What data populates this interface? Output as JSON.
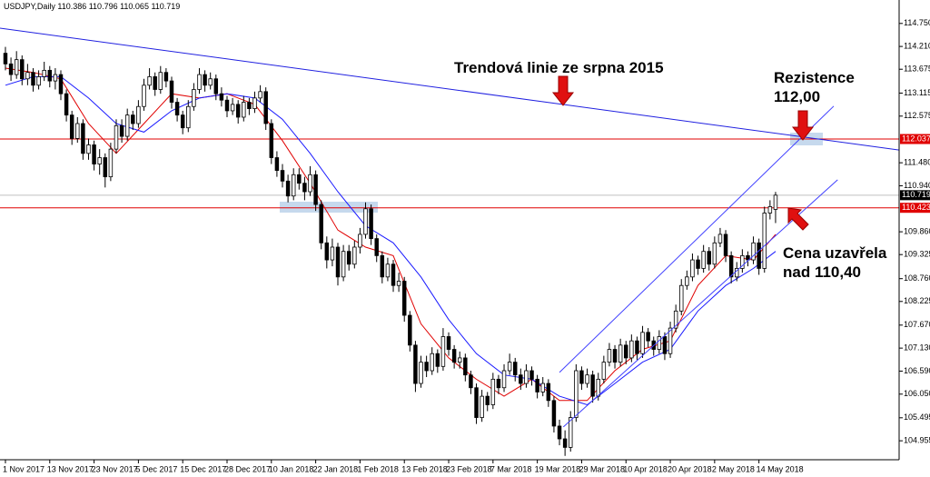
{
  "chart_data": {
    "type": "candlestick",
    "header": "USDJPY,Daily  110.386 110.796 110.065 110.719",
    "up_color": "#ffffff",
    "down_color": "#000000",
    "open": [
      114.05,
      113.8,
      113.55,
      113.9,
      113.45,
      113.6,
      113.3,
      113.5,
      113.65,
      113.4,
      113.55,
      113.1,
      112.6,
      112.05,
      112.4,
      111.7,
      111.9,
      111.45,
      111.6,
      111.15,
      111.8,
      112.35,
      112.1,
      112.6,
      112.4,
      112.8,
      113.3,
      113.5,
      113.2,
      113.6,
      113.4,
      112.9,
      112.6,
      112.3,
      112.8,
      113.2,
      113.55,
      113.3,
      113.45,
      113.1,
      112.95,
      112.7,
      112.85,
      112.55,
      112.9,
      112.75,
      113.0,
      113.15,
      112.4,
      111.6,
      111.3,
      111.05,
      110.7,
      111.2,
      111.0,
      110.8,
      111.2,
      110.5,
      109.6,
      109.2,
      109.5,
      108.8,
      109.4,
      109.1,
      109.5,
      109.8,
      110.4,
      109.7,
      109.3,
      108.8,
      109.1,
      108.6,
      108.7,
      107.9,
      107.2,
      106.3,
      106.8,
      106.6,
      107.0,
      106.7,
      107.4,
      107.1,
      106.8,
      106.9,
      106.5,
      106.2,
      105.5,
      106.0,
      105.8,
      106.4,
      106.2,
      106.6,
      106.8,
      106.5,
      106.3,
      106.6,
      106.4,
      106.1,
      106.3,
      105.9,
      105.3,
      105.0,
      104.8,
      105.5,
      106.6,
      106.3,
      106.5,
      106.0,
      106.4,
      106.8,
      107.1,
      106.8,
      107.2,
      106.9,
      107.3,
      107.0,
      107.5,
      107.3,
      107.1,
      107.4,
      107.0,
      107.6,
      108.0,
      108.6,
      108.8,
      109.2,
      109.0,
      109.4,
      109.1,
      109.6,
      109.8,
      109.3,
      108.8,
      109.0,
      109.3,
      109.2,
      109.6,
      109.0,
      110.3,
      110.386
    ],
    "high": [
      114.2,
      113.95,
      114.1,
      114.0,
      113.8,
      113.7,
      113.65,
      113.85,
      113.75,
      113.7,
      113.65,
      113.2,
      112.7,
      112.55,
      112.5,
      112.05,
      112.0,
      111.8,
      111.7,
      111.95,
      112.5,
      112.5,
      112.75,
      112.7,
      112.95,
      113.45,
      113.7,
      113.6,
      113.75,
      113.7,
      113.5,
      113.0,
      112.7,
      112.95,
      113.35,
      113.7,
      113.65,
      113.6,
      113.55,
      113.25,
      113.05,
      113.0,
      112.95,
      113.05,
      113.0,
      113.15,
      113.3,
      113.25,
      112.5,
      111.75,
      111.45,
      111.2,
      111.35,
      111.35,
      111.15,
      111.4,
      111.3,
      110.6,
      109.75,
      109.7,
      109.6,
      109.55,
      109.55,
      109.65,
      109.95,
      110.55,
      110.5,
      109.8,
      109.4,
      109.25,
      109.2,
      108.9,
      108.8,
      108.0,
      107.3,
      106.95,
      106.95,
      107.15,
      107.1,
      107.6,
      107.5,
      107.2,
      107.05,
      107.0,
      106.6,
      106.3,
      106.15,
      106.1,
      106.55,
      106.5,
      106.75,
      107.0,
      106.9,
      106.65,
      106.75,
      106.7,
      106.5,
      106.45,
      106.4,
      106.0,
      105.45,
      105.2,
      105.65,
      106.75,
      106.7,
      106.65,
      106.6,
      106.55,
      106.95,
      107.25,
      107.2,
      107.35,
      107.3,
      107.45,
      107.4,
      107.65,
      107.6,
      107.4,
      107.55,
      107.5,
      107.75,
      108.15,
      108.75,
      108.95,
      109.35,
      109.3,
      109.55,
      109.5,
      109.75,
      109.95,
      109.9,
      109.4,
      109.15,
      109.45,
      109.4,
      109.75,
      109.7,
      110.45,
      110.6,
      110.796
    ],
    "low": [
      113.65,
      113.4,
      113.45,
      113.3,
      113.3,
      113.15,
      113.2,
      113.4,
      113.25,
      113.2,
      112.95,
      112.45,
      111.9,
      111.95,
      111.55,
      111.55,
      111.3,
      111.2,
      110.9,
      111.05,
      111.7,
      111.95,
      112.0,
      112.25,
      112.3,
      112.7,
      113.2,
      113.05,
      113.1,
      113.25,
      112.75,
      112.45,
      112.15,
      112.2,
      112.7,
      113.1,
      113.15,
      113.2,
      112.95,
      112.8,
      112.55,
      112.6,
      112.4,
      112.45,
      112.6,
      112.65,
      112.9,
      112.25,
      111.45,
      111.15,
      110.9,
      110.55,
      110.6,
      110.85,
      110.6,
      110.7,
      110.35,
      109.45,
      109.0,
      109.05,
      108.6,
      108.7,
      108.95,
      109.0,
      109.35,
      109.7,
      109.55,
      109.15,
      108.65,
      108.7,
      108.45,
      108.45,
      107.75,
      107.05,
      106.1,
      106.2,
      106.45,
      106.5,
      106.55,
      106.6,
      106.95,
      106.65,
      106.65,
      106.35,
      106.05,
      105.35,
      105.4,
      105.65,
      105.7,
      106.05,
      106.1,
      106.5,
      106.35,
      106.15,
      106.2,
      106.25,
      105.95,
      106.0,
      105.75,
      105.15,
      104.85,
      104.6,
      104.7,
      105.4,
      106.15,
      106.2,
      105.85,
      105.9,
      106.3,
      106.7,
      106.65,
      106.7,
      106.75,
      106.8,
      106.85,
      106.9,
      107.15,
      106.95,
      107.0,
      106.85,
      106.9,
      107.5,
      107.9,
      108.5,
      108.7,
      108.85,
      108.9,
      108.95,
      109.0,
      109.5,
      109.15,
      108.65,
      108.7,
      108.9,
      109.05,
      109.1,
      108.85,
      108.9,
      110.15,
      110.065
    ],
    "close": [
      113.8,
      113.55,
      113.9,
      113.45,
      113.6,
      113.3,
      113.5,
      113.65,
      113.4,
      113.55,
      113.1,
      112.6,
      112.05,
      112.4,
      111.7,
      111.9,
      111.45,
      111.6,
      111.15,
      111.8,
      112.35,
      112.1,
      112.6,
      112.4,
      112.8,
      113.3,
      113.5,
      113.2,
      113.6,
      113.4,
      112.9,
      112.6,
      112.3,
      112.8,
      113.2,
      113.55,
      113.3,
      113.45,
      113.1,
      112.95,
      112.7,
      112.85,
      112.55,
      112.9,
      112.75,
      113.0,
      113.15,
      112.4,
      111.6,
      111.3,
      111.05,
      110.7,
      111.2,
      111.0,
      110.8,
      111.2,
      110.5,
      109.6,
      109.2,
      109.5,
      108.8,
      109.4,
      109.1,
      109.5,
      109.8,
      110.4,
      109.7,
      109.3,
      108.8,
      109.1,
      108.6,
      108.7,
      107.9,
      107.2,
      106.3,
      106.8,
      106.6,
      107.0,
      106.7,
      107.4,
      107.1,
      106.8,
      106.9,
      106.5,
      106.2,
      105.5,
      106.0,
      105.8,
      106.4,
      106.2,
      106.6,
      106.8,
      106.5,
      106.3,
      106.6,
      106.4,
      106.1,
      106.3,
      105.9,
      105.3,
      105.0,
      104.8,
      105.5,
      106.6,
      106.3,
      106.5,
      106.0,
      106.4,
      106.8,
      107.1,
      106.8,
      107.2,
      106.9,
      107.3,
      107.0,
      107.5,
      107.3,
      107.1,
      107.4,
      107.0,
      107.6,
      108.0,
      108.6,
      108.8,
      109.2,
      109.0,
      109.4,
      109.1,
      109.6,
      109.8,
      109.3,
      108.8,
      109.0,
      109.3,
      109.2,
      109.6,
      109.0,
      110.3,
      110.45,
      110.719
    ],
    "xlim": [
      -0.98,
      161.3
    ],
    "xticks": [
      {
        "value": 0,
        "label": "1 Nov 2017"
      },
      {
        "value": 8,
        "label": "13 Nov 2017"
      },
      {
        "value": 16,
        "label": "23 Nov 2017"
      },
      {
        "value": 24,
        "label": "5 Dec 2017"
      },
      {
        "value": 32,
        "label": "15 Dec 2017"
      },
      {
        "value": 40,
        "label": "28 Dec 2017"
      },
      {
        "value": 48,
        "label": "10 Jan 2018"
      },
      {
        "value": 56,
        "label": "22 Jan 2018"
      },
      {
        "value": 64,
        "label": "1 Feb 2018"
      },
      {
        "value": 72,
        "label": "13 Feb 2018"
      },
      {
        "value": 80,
        "label": "23 Feb 2018"
      },
      {
        "value": 88,
        "label": "7 Mar 2018"
      },
      {
        "value": 96,
        "label": "19 Mar 2018"
      },
      {
        "value": 104,
        "label": "29 Mar 2018"
      },
      {
        "value": 112,
        "label": "10 Apr 2018"
      },
      {
        "value": 120,
        "label": "20 Apr 2018"
      },
      {
        "value": 128,
        "label": "2 May 2018"
      },
      {
        "value": 136,
        "label": "14 May 2018"
      }
    ],
    "ylim": [
      104.51,
      115.3
    ],
    "yticks": [
      {
        "value": 114.75,
        "label": "114.750"
      },
      {
        "value": 114.21,
        "label": "114.210"
      },
      113.675,
      113.115,
      112.575,
      {
        "value": 111.48,
        "label": "111.480"
      },
      {
        "value": 110.94,
        "label": "110.940"
      },
      {
        "value": 109.86,
        "label": "109.860"
      },
      109.325,
      {
        "value": 108.76,
        "label": "108.760"
      },
      108.225,
      {
        "value": 107.67,
        "label": "107.670"
      },
      {
        "value": 107.13,
        "label": "107.130"
      },
      {
        "value": 106.59,
        "label": "106.590"
      },
      {
        "value": 106.05,
        "label": "106.050"
      },
      105.495,
      104.955
    ],
    "hlines": [
      {
        "value": 112.037,
        "color": "#e00000"
      },
      {
        "value": 110.719,
        "color": "#000000"
      },
      {
        "value": 110.423,
        "color": "#e00000"
      }
    ],
    "ma_lines": [
      {
        "color": "#e00000",
        "x": [
          0,
          5,
          10,
          15,
          20,
          25,
          30,
          35,
          40,
          45,
          50,
          55,
          60,
          65,
          70,
          75,
          80,
          85,
          90,
          95,
          100,
          105,
          110,
          115,
          120,
          125,
          130,
          135,
          139
        ],
        "values": [
          113.7,
          113.6,
          113.45,
          112.4,
          111.7,
          112.4,
          113.1,
          113.0,
          113.1,
          112.85,
          112.0,
          111.0,
          109.9,
          109.5,
          109.3,
          107.7,
          106.9,
          106.4,
          106.0,
          106.4,
          105.9,
          105.9,
          106.6,
          107.1,
          107.3,
          108.6,
          109.3,
          109.2,
          109.8
        ]
      },
      {
        "color": "#1a1aff",
        "x": [
          0,
          5,
          10,
          15,
          20,
          25,
          30,
          35,
          40,
          45,
          50,
          55,
          60,
          65,
          70,
          75,
          80,
          85,
          90,
          95,
          100,
          105,
          110,
          115,
          120,
          125,
          130,
          135,
          139
        ],
        "values": [
          113.3,
          113.5,
          113.5,
          113.0,
          112.4,
          112.2,
          112.7,
          113.0,
          113.1,
          113.0,
          112.5,
          111.7,
          110.8,
          110.0,
          109.6,
          108.8,
          107.8,
          107.0,
          106.5,
          106.4,
          106.0,
          105.8,
          106.3,
          106.8,
          107.1,
          108.0,
          108.6,
          109.0,
          109.4
        ]
      }
    ],
    "trendlines": [
      {
        "color": "#2020e0",
        "x": [
          -0.98,
          161.3
        ],
        "values": [
          114.64,
          111.78
        ]
      },
      {
        "color": "#4040ff",
        "x": [
          100,
          149.5
        ],
        "values": [
          106.56,
          112.81
        ]
      },
      {
        "color": "#4040ff",
        "x": [
          100.7,
          150.2
        ],
        "values": [
          105.28,
          111.08
        ]
      }
    ],
    "annotations": [
      {
        "lines": [
          "Trendová linie ze srpna 2015"
        ]
      },
      {
        "lines": [
          "Rezistence",
          "112,00"
        ]
      },
      {
        "lines": [
          "Cena uzavřela",
          "nad 110,40"
        ]
      }
    ]
  }
}
